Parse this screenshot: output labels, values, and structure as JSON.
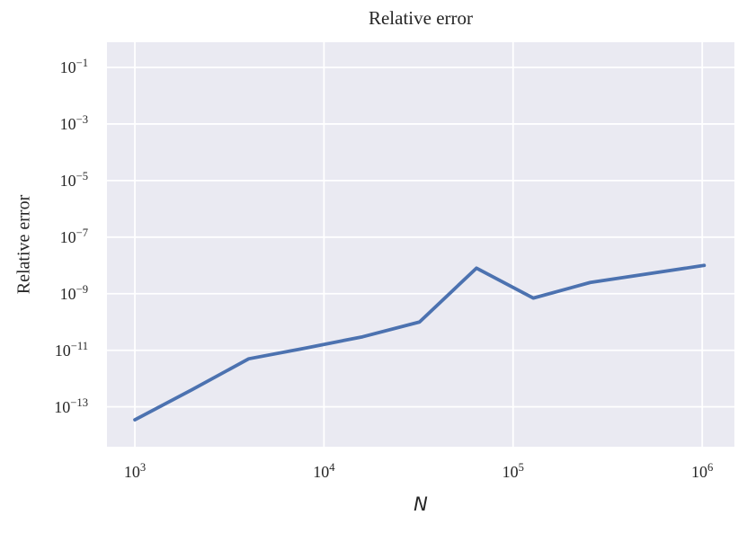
{
  "chart_data": {
    "type": "line",
    "title": "Relative error",
    "xlabel": "N",
    "ylabel": "Relative error",
    "x_scale": "log",
    "y_scale": "log",
    "x": [
      1000,
      2000,
      4000,
      8000,
      16000,
      32000,
      64000,
      128000,
      256000,
      512000,
      1024000
    ],
    "y": [
      3.5e-14,
      4e-13,
      5e-12,
      1.2e-11,
      3e-11,
      1e-10,
      8e-09,
      7e-10,
      2.5e-09,
      5e-09,
      1e-08
    ],
    "series_name": "relative-error",
    "xlim": [
      712,
      1480000
    ],
    "ylim": [
      3.9e-15,
      0.775
    ],
    "x_tick_exponents": [
      3,
      4,
      5,
      6
    ],
    "y_tick_exponents": [
      -1,
      -3,
      -5,
      -7,
      -9,
      -11,
      -13
    ],
    "grid": true,
    "legend": false,
    "colors": {
      "line": "#4c72b0",
      "plot_bg": "#eaeaf2",
      "grid": "#ffffff",
      "text": "#262626",
      "fig_bg": "#ffffff"
    }
  }
}
